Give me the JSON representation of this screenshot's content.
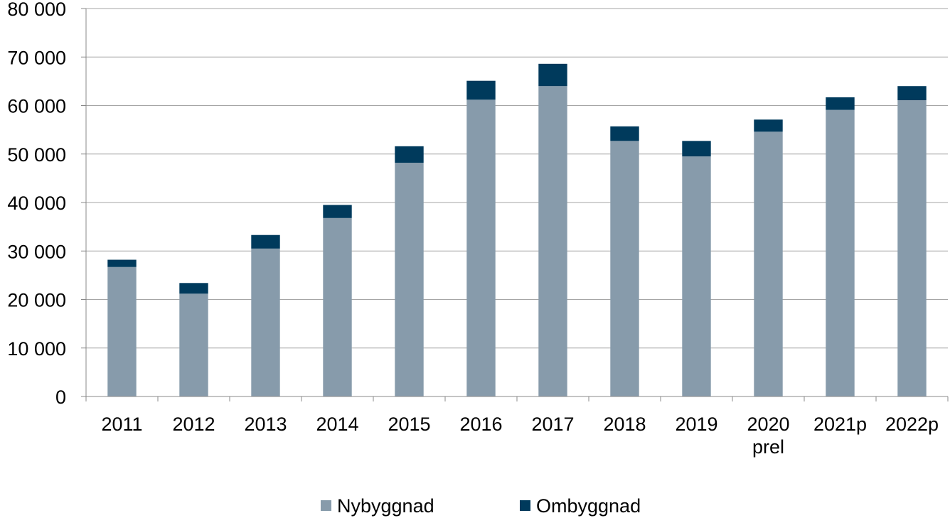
{
  "chart_data": {
    "type": "bar",
    "stacked": true,
    "categories": [
      [
        "2011"
      ],
      [
        "2012"
      ],
      [
        "2013"
      ],
      [
        "2014"
      ],
      [
        "2015"
      ],
      [
        "2016"
      ],
      [
        "2017"
      ],
      [
        "2018"
      ],
      [
        "2019"
      ],
      [
        "2020",
        "prel"
      ],
      [
        "2021p"
      ],
      [
        "2022p"
      ]
    ],
    "series": [
      {
        "name": "Nybyggnad",
        "color": "#879bab",
        "values": [
          26700,
          21200,
          30500,
          36800,
          48200,
          61200,
          64000,
          52700,
          49500,
          54600,
          59100,
          61100
        ]
      },
      {
        "name": "Ombyggnad",
        "color": "#003a5c",
        "values": [
          1500,
          2200,
          2800,
          2700,
          3400,
          3900,
          4600,
          3000,
          3200,
          2500,
          2600,
          2900
        ]
      }
    ],
    "y_ticks": [
      "0",
      "10 000",
      "20 000",
      "30 000",
      "40 000",
      "50 000",
      "60 000",
      "70 000",
      "80 000"
    ],
    "ylim": [
      0,
      80000
    ],
    "y_step": 10000,
    "grid": true,
    "legend_position": "bottom",
    "title": "",
    "xlabel": "",
    "ylabel": ""
  }
}
